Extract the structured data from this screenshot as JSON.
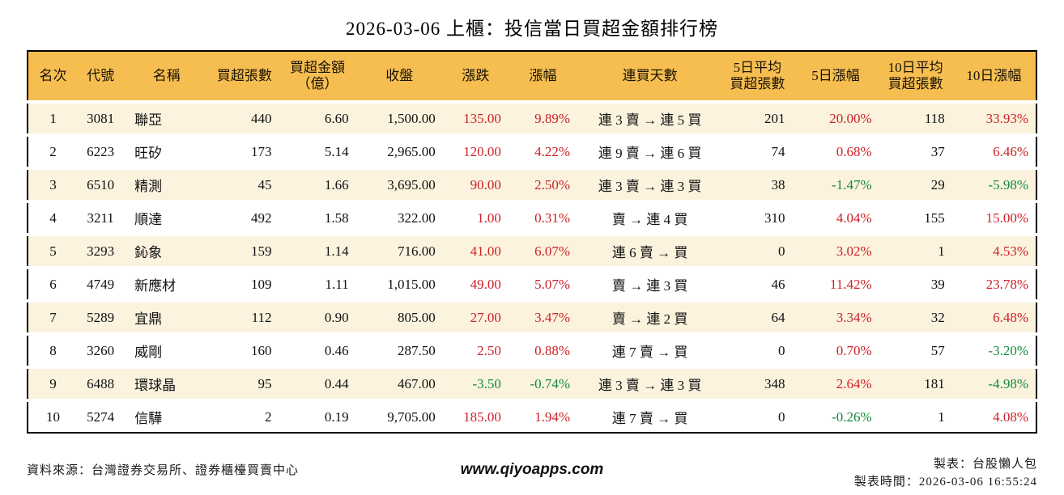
{
  "title": "2026-03-06 上櫃：投信當日買超金額排行榜",
  "table": {
    "headers": [
      "名次",
      "代號",
      "名稱",
      "買超張數",
      "買超金額\n（億）",
      "收盤",
      "漲跌",
      "漲幅",
      "連買天數",
      "5日平均\n買超張數",
      "5日漲幅",
      "10日平均\n買超張數",
      "10日漲幅"
    ],
    "rows": [
      {
        "rank": "1",
        "code": "3081",
        "name": "聯亞",
        "shares": "440",
        "amount": "6.60",
        "close": "1,500.00",
        "change": "135.00",
        "change_pct": "9.89%",
        "streak": "連 3 賣 → 連 5 買",
        "avg5": "201",
        "pct5": "20.00%",
        "avg10": "118",
        "pct10": "33.93%"
      },
      {
        "rank": "2",
        "code": "6223",
        "name": "旺矽",
        "shares": "173",
        "amount": "5.14",
        "close": "2,965.00",
        "change": "120.00",
        "change_pct": "4.22%",
        "streak": "連 9 賣 → 連 6 買",
        "avg5": "74",
        "pct5": "0.68%",
        "avg10": "37",
        "pct10": "6.46%"
      },
      {
        "rank": "3",
        "code": "6510",
        "name": "精測",
        "shares": "45",
        "amount": "1.66",
        "close": "3,695.00",
        "change": "90.00",
        "change_pct": "2.50%",
        "streak": "連 3 賣 → 連 3 買",
        "avg5": "38",
        "pct5": "-1.47%",
        "avg10": "29",
        "pct10": "-5.98%"
      },
      {
        "rank": "4",
        "code": "3211",
        "name": "順達",
        "shares": "492",
        "amount": "1.58",
        "close": "322.00",
        "change": "1.00",
        "change_pct": "0.31%",
        "streak": "賣 → 連 4 買",
        "avg5": "310",
        "pct5": "4.04%",
        "avg10": "155",
        "pct10": "15.00%"
      },
      {
        "rank": "5",
        "code": "3293",
        "name": "鈊象",
        "shares": "159",
        "amount": "1.14",
        "close": "716.00",
        "change": "41.00",
        "change_pct": "6.07%",
        "streak": "連 6 賣 → 買",
        "avg5": "0",
        "pct5": "3.02%",
        "avg10": "1",
        "pct10": "4.53%"
      },
      {
        "rank": "6",
        "code": "4749",
        "name": "新應材",
        "shares": "109",
        "amount": "1.11",
        "close": "1,015.00",
        "change": "49.00",
        "change_pct": "5.07%",
        "streak": "賣 → 連 3 買",
        "avg5": "46",
        "pct5": "11.42%",
        "avg10": "39",
        "pct10": "23.78%"
      },
      {
        "rank": "7",
        "code": "5289",
        "name": "宜鼎",
        "shares": "112",
        "amount": "0.90",
        "close": "805.00",
        "change": "27.00",
        "change_pct": "3.47%",
        "streak": "賣 → 連 2 買",
        "avg5": "64",
        "pct5": "3.34%",
        "avg10": "32",
        "pct10": "6.48%"
      },
      {
        "rank": "8",
        "code": "3260",
        "name": "威剛",
        "shares": "160",
        "amount": "0.46",
        "close": "287.50",
        "change": "2.50",
        "change_pct": "0.88%",
        "streak": "連 7 賣 → 買",
        "avg5": "0",
        "pct5": "0.70%",
        "avg10": "57",
        "pct10": "-3.20%"
      },
      {
        "rank": "9",
        "code": "6488",
        "name": "環球晶",
        "shares": "95",
        "amount": "0.44",
        "close": "467.00",
        "change": "-3.50",
        "change_pct": "-0.74%",
        "streak": "連 3 賣 → 連 3 買",
        "avg5": "348",
        "pct5": "2.64%",
        "avg10": "181",
        "pct10": "-4.98%"
      },
      {
        "rank": "10",
        "code": "5274",
        "name": "信驊",
        "shares": "2",
        "amount": "0.19",
        "close": "9,705.00",
        "change": "185.00",
        "change_pct": "1.94%",
        "streak": "連 7 賣 → 買",
        "avg5": "0",
        "pct5": "-0.26%",
        "avg10": "1",
        "pct10": "4.08%"
      }
    ]
  },
  "footer": {
    "source": "資料來源：台灣證券交易所、證券櫃檯買賣中心",
    "website": "www.qiyoapps.com",
    "maker": "製表：台股懶人包",
    "time": "製表時間：2026-03-06 16:55:24"
  },
  "colors": {
    "header_bg": "#f6be51",
    "row_alt_bg": "#fbf3de",
    "up": "#cc2229",
    "down": "#148a3c"
  }
}
